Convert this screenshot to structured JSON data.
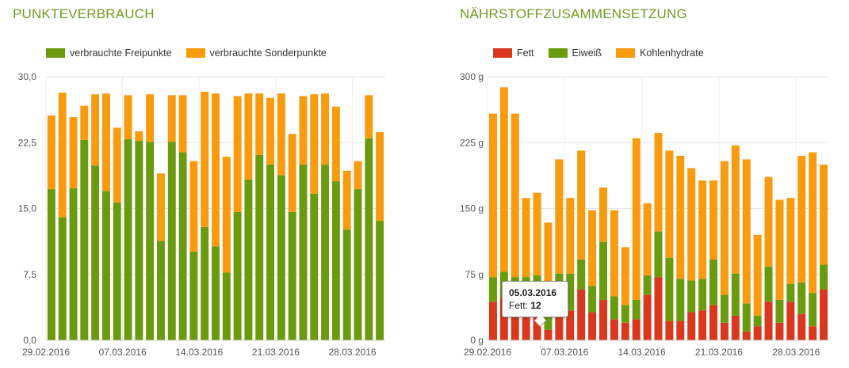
{
  "charts": {
    "left": {
      "title": "PUNKTEVERBRAUCH",
      "legend": [
        {
          "label": "verbrauchte Freipunkte",
          "color": "#6a9b0e"
        },
        {
          "label": "verbrauchte Sonderpunkte",
          "color": "#f99b0e"
        }
      ]
    },
    "right": {
      "title": "NÄHRSTOFFZUSAMMENSETZUNG",
      "legend": [
        {
          "label": "Fett",
          "color": "#d9381e"
        },
        {
          "label": "Eiweiß",
          "color": "#6a9b0e"
        },
        {
          "label": "Kohlenhydrate",
          "color": "#f99b0e"
        }
      ]
    }
  },
  "tooltip": {
    "date": "05.03.2016",
    "label": "Fett:",
    "value": "12"
  },
  "chart_data": [
    {
      "type": "bar",
      "stacked": true,
      "title": "PUNKTEVERBRAUCH",
      "x_start_date": "29.02.2016",
      "xtick_labels": [
        "29.02.2016",
        "07.03.2016",
        "14.03.2016",
        "21.03.2016",
        "28.03.2016"
      ],
      "ytick_labels": [
        "0,0",
        "7,5",
        "15,0",
        "22,5",
        "30,0"
      ],
      "ylim": [
        0,
        30
      ],
      "grid": true,
      "legend_position": "top-left",
      "series": [
        {
          "name": "verbrauchte Freipunkte",
          "color": "#6a9b0e",
          "values": [
            17.2,
            14,
            17.3,
            22.8,
            19.9,
            17,
            15.7,
            22.9,
            22.7,
            22.6,
            11.3,
            22.6,
            21.4,
            10.1,
            12.9,
            10.7,
            7.7,
            14.6,
            18.3,
            21.1,
            20,
            18.8,
            14.6,
            20,
            16.7,
            20,
            18.1,
            12.6,
            17.2,
            23,
            13.6
          ]
        },
        {
          "name": "verbrauchte Sonderpunkte",
          "color": "#f99b0e",
          "values": [
            8.4,
            14.2,
            8.1,
            3.9,
            8.1,
            11.1,
            8.5,
            5,
            1.1,
            5.4,
            7.7,
            5.3,
            6.5,
            10.3,
            15.4,
            17.4,
            13.2,
            13.2,
            9.8,
            7,
            7.6,
            9.3,
            8.9,
            7.8,
            11.3,
            8.1,
            8.5,
            6.7,
            3.2,
            4.9,
            10.1
          ]
        }
      ]
    },
    {
      "type": "bar",
      "stacked": true,
      "title": "NÄHRSTOFFZUSAMMENSETZUNG",
      "x_start_date": "29.02.2016",
      "xtick_labels": [
        "29.02.2016",
        "07.03.2016",
        "14.03.2016",
        "21.03.2016",
        "28.03.2016"
      ],
      "ytick_labels": [
        "0 g",
        "75 g",
        "150 g",
        "225 g",
        "300 g"
      ],
      "ylim": [
        0,
        300
      ],
      "grid": true,
      "legend_position": "top-left",
      "series": [
        {
          "name": "Fett",
          "color": "#d9381e",
          "values": [
            44,
            48,
            42,
            40,
            34,
            12,
            36,
            34,
            58,
            32,
            46,
            24,
            20,
            24,
            52,
            72,
            22,
            22,
            32,
            34,
            40,
            20,
            28,
            10,
            16,
            44,
            20,
            44,
            30,
            16,
            58
          ]
        },
        {
          "name": "Eiweiß",
          "color": "#6a9b0e",
          "values": [
            28,
            30,
            30,
            32,
            40,
            24,
            40,
            42,
            34,
            30,
            66,
            26,
            20,
            22,
            22,
            52,
            72,
            48,
            36,
            36,
            52,
            32,
            48,
            32,
            12,
            40,
            26,
            20,
            36,
            38,
            28
          ]
        },
        {
          "name": "Kohlenhydrate",
          "color": "#f99b0e",
          "values": [
            186,
            210,
            186,
            90,
            94,
            98,
            130,
            86,
            124,
            86,
            62,
            98,
            66,
            184,
            82,
            112,
            122,
            140,
            128,
            112,
            90,
            152,
            146,
            164,
            92,
            102,
            114,
            98,
            144,
            160,
            114
          ]
        }
      ]
    }
  ]
}
